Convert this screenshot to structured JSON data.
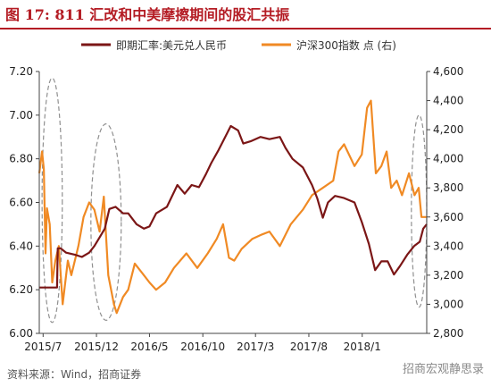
{
  "figure": {
    "title": "图 17: 811 汇改和中美摩擦期间的股汇共振",
    "source": "资料来源：Wind，招商证券",
    "watermark": "招商宏观静思录"
  },
  "colors": {
    "title": "#b41c24",
    "fx": "#7b1616",
    "csi": "#f08a24",
    "ellipse": "#909090",
    "axis": "#444444"
  },
  "chart_data": {
    "type": "line",
    "x_tick_labels": [
      "2015/7",
      "2015/12",
      "2016/5",
      "2016/10",
      "2017/3",
      "2017/8",
      "2018/1"
    ],
    "x_tick_dates": [
      "2015-07-01",
      "2015-12-01",
      "2016-05-01",
      "2016-10-01",
      "2017-03-01",
      "2017-08-01",
      "2018-01-01"
    ],
    "x_range": [
      "2015-06-20",
      "2018-07-05"
    ],
    "left_axis": {
      "ylim": [
        6.0,
        7.2
      ],
      "ticks": [
        "6.00",
        "6.20",
        "6.40",
        "6.60",
        "6.80",
        "7.00",
        "7.20"
      ]
    },
    "right_axis": {
      "ylim": [
        2800,
        4600
      ],
      "ticks": [
        "2,800",
        "3,000",
        "3,200",
        "3,400",
        "3,600",
        "3,800",
        "4,000",
        "4,200",
        "4,400",
        "4,600"
      ]
    },
    "legend_position": "top",
    "series": [
      {
        "name": "即期汇率:美元兑人民币",
        "axis": "left",
        "points": [
          [
            "2015-06-20",
            6.21
          ],
          [
            "2015-07-20",
            6.21
          ],
          [
            "2015-08-10",
            6.21
          ],
          [
            "2015-08-12",
            6.39
          ],
          [
            "2015-08-20",
            6.39
          ],
          [
            "2015-09-05",
            6.37
          ],
          [
            "2015-10-01",
            6.36
          ],
          [
            "2015-10-20",
            6.35
          ],
          [
            "2015-11-10",
            6.37
          ],
          [
            "2015-11-25",
            6.4
          ],
          [
            "2015-12-10",
            6.44
          ],
          [
            "2015-12-25",
            6.48
          ],
          [
            "2016-01-07",
            6.57
          ],
          [
            "2016-01-25",
            6.58
          ],
          [
            "2016-02-15",
            6.55
          ],
          [
            "2016-03-01",
            6.55
          ],
          [
            "2016-03-25",
            6.5
          ],
          [
            "2016-04-15",
            6.48
          ],
          [
            "2016-05-01",
            6.49
          ],
          [
            "2016-05-20",
            6.55
          ],
          [
            "2016-06-20",
            6.58
          ],
          [
            "2016-07-20",
            6.68
          ],
          [
            "2016-08-10",
            6.64
          ],
          [
            "2016-08-30",
            6.68
          ],
          [
            "2016-09-20",
            6.67
          ],
          [
            "2016-10-10",
            6.73
          ],
          [
            "2016-10-25",
            6.78
          ],
          [
            "2016-11-15",
            6.84
          ],
          [
            "2016-12-01",
            6.89
          ],
          [
            "2016-12-20",
            6.95
          ],
          [
            "2017-01-10",
            6.93
          ],
          [
            "2017-01-25",
            6.87
          ],
          [
            "2017-02-15",
            6.88
          ],
          [
            "2017-03-15",
            6.9
          ],
          [
            "2017-04-10",
            6.89
          ],
          [
            "2017-05-10",
            6.9
          ],
          [
            "2017-05-26",
            6.85
          ],
          [
            "2017-06-15",
            6.8
          ],
          [
            "2017-07-15",
            6.76
          ],
          [
            "2017-08-10",
            6.68
          ],
          [
            "2017-08-25",
            6.62
          ],
          [
            "2017-09-10",
            6.53
          ],
          [
            "2017-09-25",
            6.6
          ],
          [
            "2017-10-15",
            6.63
          ],
          [
            "2017-11-10",
            6.62
          ],
          [
            "2017-12-10",
            6.6
          ],
          [
            "2017-12-31",
            6.51
          ],
          [
            "2018-01-20",
            6.41
          ],
          [
            "2018-02-07",
            6.29
          ],
          [
            "2018-02-25",
            6.33
          ],
          [
            "2018-03-15",
            6.33
          ],
          [
            "2018-04-02",
            6.27
          ],
          [
            "2018-04-20",
            6.31
          ],
          [
            "2018-05-10",
            6.36
          ],
          [
            "2018-05-30",
            6.4
          ],
          [
            "2018-06-15",
            6.42
          ],
          [
            "2018-06-25",
            6.48
          ],
          [
            "2018-07-05",
            6.5
          ]
        ]
      },
      {
        "name": "沪深300指数 点 (右)",
        "axis": "right",
        "points": [
          [
            "2015-06-20",
            3900
          ],
          [
            "2015-06-28",
            4050
          ],
          [
            "2015-07-03",
            3930
          ],
          [
            "2015-07-08",
            3350
          ],
          [
            "2015-07-12",
            3660
          ],
          [
            "2015-07-20",
            3550
          ],
          [
            "2015-07-27",
            3150
          ],
          [
            "2015-08-05",
            3300
          ],
          [
            "2015-08-15",
            3400
          ],
          [
            "2015-08-26",
            3000
          ],
          [
            "2015-09-10",
            3300
          ],
          [
            "2015-09-20",
            3200
          ],
          [
            "2015-10-10",
            3400
          ],
          [
            "2015-10-25",
            3600
          ],
          [
            "2015-11-10",
            3700
          ],
          [
            "2015-11-25",
            3650
          ],
          [
            "2015-12-10",
            3500
          ],
          [
            "2015-12-22",
            3740
          ],
          [
            "2016-01-04",
            3200
          ],
          [
            "2016-01-20",
            3000
          ],
          [
            "2016-01-28",
            2940
          ],
          [
            "2016-02-15",
            3050
          ],
          [
            "2016-03-01",
            3100
          ],
          [
            "2016-03-20",
            3280
          ],
          [
            "2016-04-15",
            3200
          ],
          [
            "2016-05-01",
            3150
          ],
          [
            "2016-05-20",
            3100
          ],
          [
            "2016-06-15",
            3150
          ],
          [
            "2016-07-10",
            3250
          ],
          [
            "2016-08-15",
            3350
          ],
          [
            "2016-09-15",
            3250
          ],
          [
            "2016-10-15",
            3350
          ],
          [
            "2016-11-10",
            3450
          ],
          [
            "2016-11-28",
            3550
          ],
          [
            "2016-12-15",
            3320
          ],
          [
            "2016-12-30",
            3300
          ],
          [
            "2017-01-20",
            3380
          ],
          [
            "2017-02-20",
            3450
          ],
          [
            "2017-03-20",
            3480
          ],
          [
            "2017-04-10",
            3500
          ],
          [
            "2017-05-10",
            3400
          ],
          [
            "2017-06-10",
            3550
          ],
          [
            "2017-07-15",
            3650
          ],
          [
            "2017-08-10",
            3750
          ],
          [
            "2017-09-10",
            3800
          ],
          [
            "2017-10-10",
            3850
          ],
          [
            "2017-10-25",
            4050
          ],
          [
            "2017-11-10",
            4100
          ],
          [
            "2017-11-20",
            4050
          ],
          [
            "2017-12-10",
            3950
          ],
          [
            "2017-12-31",
            4030
          ],
          [
            "2018-01-15",
            4350
          ],
          [
            "2018-01-26",
            4400
          ],
          [
            "2018-02-09",
            3900
          ],
          [
            "2018-02-25",
            3950
          ],
          [
            "2018-03-12",
            4050
          ],
          [
            "2018-03-25",
            3800
          ],
          [
            "2018-04-10",
            3850
          ],
          [
            "2018-04-25",
            3750
          ],
          [
            "2018-05-15",
            3900
          ],
          [
            "2018-05-31",
            3750
          ],
          [
            "2018-06-12",
            3800
          ],
          [
            "2018-06-20",
            3600
          ],
          [
            "2018-07-05",
            3600
          ]
        ]
      }
    ],
    "annotations": [
      {
        "type": "dashed-ellipse",
        "x_range": [
          "2015-06-28",
          "2015-08-25"
        ],
        "left_y_range": [
          6.05,
          7.17
        ]
      },
      {
        "type": "dashed-ellipse",
        "x_range": [
          "2015-11-15",
          "2016-02-10"
        ],
        "left_y_range": [
          6.06,
          6.96
        ]
      },
      {
        "type": "dashed-ellipse",
        "x_range": [
          "2018-05-22",
          "2018-07-05"
        ],
        "left_y_range": [
          6.12,
          7.0
        ]
      }
    ]
  }
}
